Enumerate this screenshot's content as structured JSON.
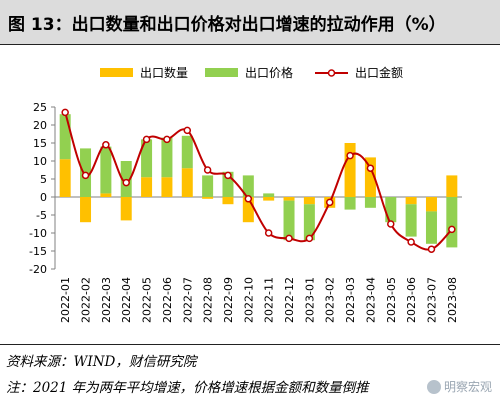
{
  "title": "图 13：出口数量和出口价格对出口增速的拉动作用（%）",
  "source": "资料来源：WIND，财信研究院",
  "note": "注：2021 年为两年平均增速，价格增速根据金额和数量倒推",
  "watermark": "明察宏观",
  "colors": {
    "quantity": "#ffc000",
    "price": "#92d050",
    "value_line": "#c00000",
    "value_marker_fill": "#ffffff"
  },
  "chart_data": {
    "type": "bar",
    "stacked": true,
    "categories": [
      "2022-01",
      "2022-02",
      "2022-03",
      "2022-04",
      "2022-05",
      "2022-06",
      "2022-07",
      "2022-08",
      "2022-09",
      "2022-10",
      "2022-11",
      "2022-12",
      "2023-01",
      "2023-02",
      "2023-03",
      "2023-04",
      "2023-05",
      "2023-06",
      "2023-07",
      "2023-08"
    ],
    "series": [
      {
        "name": "出口数量",
        "type": "bar",
        "values": [
          10.5,
          -7,
          1,
          -6.5,
          5.5,
          5.5,
          8,
          -0.5,
          -2,
          -7,
          -1,
          -1,
          -2,
          -3,
          15,
          11,
          0,
          -2,
          -4,
          6
        ]
      },
      {
        "name": "出口价格",
        "type": "bar",
        "values": [
          12.5,
          13.5,
          13,
          10,
          10.5,
          11,
          9,
          6,
          7,
          6,
          1,
          -11,
          -10,
          0,
          -3.5,
          -3,
          -7,
          -9,
          -9,
          -14
        ]
      },
      {
        "name": "出口金额",
        "type": "line",
        "values": [
          23.5,
          6,
          14.5,
          4,
          16,
          16,
          18.5,
          7.5,
          6,
          -0.5,
          -10,
          -11.5,
          -11.5,
          -1.5,
          11.5,
          8,
          -7.5,
          -12.5,
          -14.5,
          -9
        ]
      }
    ],
    "ylim": [
      -20,
      25
    ],
    "yticks": [
      -20,
      -15,
      -10,
      -5,
      0,
      5,
      10,
      15,
      20,
      25
    ],
    "xlabel": "",
    "ylabel": "",
    "grid": false,
    "legend": "top"
  }
}
